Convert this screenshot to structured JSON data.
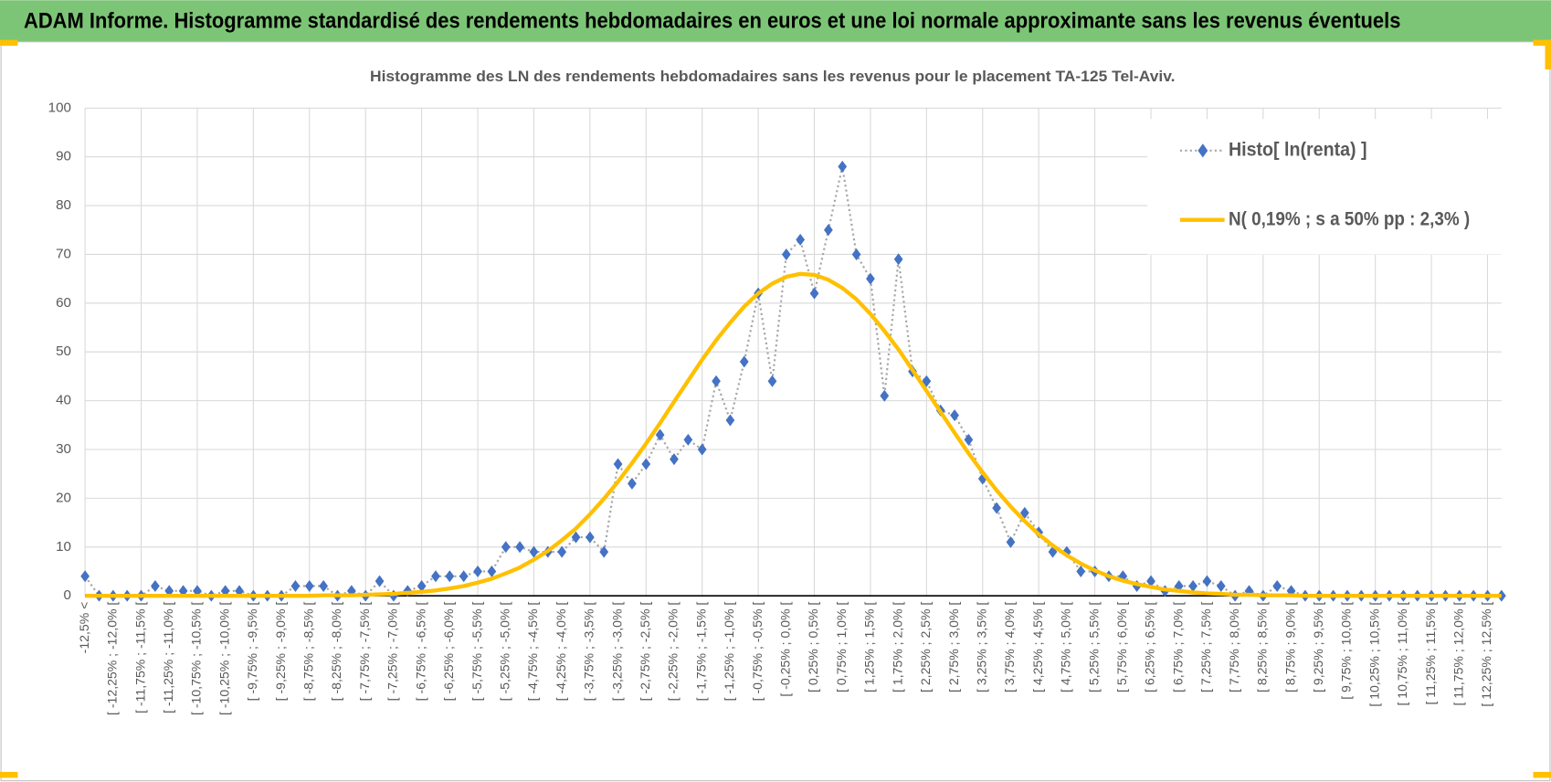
{
  "chart_data": {
    "type": "line",
    "title": "ADAM Informe. Histogramme standardisé des rendements hebdomadaires en euros et une loi normale approximante sans les revenus éventuels",
    "subtitle": "Histogramme des LN des rendements hebdomadaires sans les revenus pour le placement TA-125 Tel-Aviv.",
    "categories": [
      "-12,5% <",
      null,
      "[ -12,25% ; -12,0% [",
      null,
      "[ -11,75% ; -11,5% [",
      null,
      "[ -11,25% ; -11,0% [",
      null,
      "[ -10,75% ; -10,5% [",
      null,
      "[ -10,25% ; -10,0% [",
      null,
      "[ -9,75% ; -9,5% [",
      null,
      "[ -9,25% ; -9,0% [",
      null,
      "[ -8,75% ; -8,5% [",
      null,
      "[ -8,25% ; -8,0% [",
      null,
      "[ -7,75% ; -7,5% [",
      null,
      "[ -7,25% ; -7,0% [",
      null,
      "[ -6,75% ; -6,5% [",
      null,
      "[ -6,25% ; -6,0% [",
      null,
      "[ -5,75% ; -5,5% [",
      null,
      "[ -5,25% ; -5,0% [",
      null,
      "[ -4,75% ; -4,5% [",
      null,
      "[ -4,25% ; -4,0% [",
      null,
      "[ -3,75% ; -3,5% [",
      null,
      "[ -3,25% ; -3,0% [",
      null,
      "[ -2,75% ; -2,5% [",
      null,
      "[ -2,25% ; -2,0% [",
      null,
      "[ -1,75% ; -1,5% [",
      null,
      "[ -1,25% ; -1,0% [",
      null,
      "[ -0,75% ; -0,5% [",
      null,
      "[ -0,25% ; 0,0% [",
      null,
      "[ 0,25% ; 0,5% [",
      null,
      "[ 0,75% ; 1,0% [",
      null,
      "[ 1,25% ; 1,5% [",
      null,
      "[ 1,75% ; 2,0% [",
      null,
      "[ 2,25% ; 2,5% [",
      null,
      "[ 2,75% ; 3,0% [",
      null,
      "[ 3,25% ; 3,5% [",
      null,
      "[ 3,75% ; 4,0% [",
      null,
      "[ 4,25% ; 4,5% [",
      null,
      "[ 4,75% ; 5,0% [",
      null,
      "[ 5,25% ; 5,5% [",
      null,
      "[ 5,75% ; 6,0% [",
      null,
      "[ 6,25% ; 6,5% [",
      null,
      "[ 6,75% ; 7,0% [",
      null,
      "[ 7,25% ; 7,5% [",
      null,
      "[ 7,75% ; 8,0% [",
      null,
      "[ 8,25% ; 8,5% [",
      null,
      "[ 8,75% ; 9,0% [",
      null,
      "[ 9,25% ; 9,5% [",
      null,
      "[ 9,75% ; 10,0% [",
      null,
      "[ 10,25% ; 10,5% [",
      null,
      "[ 10,75% ; 11,0% [",
      null,
      "[ 11,25% ; 11,5% [",
      null,
      "[ 11,75% ; 12,0% [",
      null,
      "[ 12,25% ; 12,5% [",
      null
    ],
    "series": [
      {
        "name": "Histo[ ln(renta) ]",
        "color": "#4472c4",
        "line_color": "#a6a6a6",
        "marker": "diamond",
        "values": [
          4,
          0,
          0,
          0,
          0,
          2,
          1,
          1,
          1,
          0,
          1,
          1,
          0,
          0,
          0,
          2,
          2,
          2,
          0,
          1,
          0,
          3,
          0,
          1,
          2,
          4,
          4,
          4,
          5,
          5,
          10,
          10,
          9,
          9,
          9,
          12,
          12,
          9,
          27,
          23,
          27,
          33,
          28,
          32,
          30,
          44,
          36,
          48,
          62,
          44,
          70,
          73,
          62,
          75,
          88,
          70,
          65,
          41,
          69,
          46,
          44,
          38,
          37,
          32,
          24,
          18,
          11,
          17,
          13,
          9,
          9,
          5,
          5,
          4,
          4,
          2,
          3,
          1,
          2,
          2,
          3,
          2,
          0,
          1,
          0,
          2,
          1,
          0,
          0,
          0,
          0,
          0,
          0,
          0,
          0,
          0,
          0,
          0,
          0,
          0,
          0,
          0
        ]
      },
      {
        "name": "N( 0,19% ; s a 50% pp : 2,3% )",
        "color": "#ffc000",
        "values": [
          0,
          0,
          0,
          0,
          0,
          0,
          0,
          0,
          0,
          0,
          0,
          0,
          0,
          0,
          0,
          0,
          0,
          0.1,
          0.1,
          0.1,
          0.2,
          0.3,
          0.4,
          0.6,
          0.8,
          1.1,
          1.5,
          2,
          2.7,
          3.5,
          4.6,
          5.8,
          7.4,
          9.2,
          11.4,
          13.8,
          16.7,
          19.9,
          23.4,
          27.2,
          31.2,
          35.4,
          39.8,
          44.1,
          48.4,
          52.4,
          56,
          59.3,
          62,
          64,
          65.4,
          66,
          65.8,
          64.8,
          63.1,
          60.8,
          57.8,
          54.3,
          50.5,
          46.3,
          42,
          37.7,
          33.4,
          29.2,
          25.3,
          21.6,
          18.3,
          15.3,
          12.6,
          10.3,
          8.3,
          6.6,
          5.2,
          4,
          3.1,
          2.4,
          1.8,
          1.3,
          1,
          0.7,
          0.5,
          0.4,
          0.2,
          0.2,
          0.1,
          0.1,
          0.1,
          0,
          0,
          0,
          0,
          0,
          0,
          0,
          0,
          0,
          0,
          0,
          0,
          0,
          0,
          0
        ]
      }
    ],
    "ylim": [
      0,
      100
    ],
    "yticks": [
      0,
      10,
      20,
      30,
      40,
      50,
      60,
      70,
      80,
      90,
      100
    ],
    "grid": true,
    "legend": "upper right"
  }
}
